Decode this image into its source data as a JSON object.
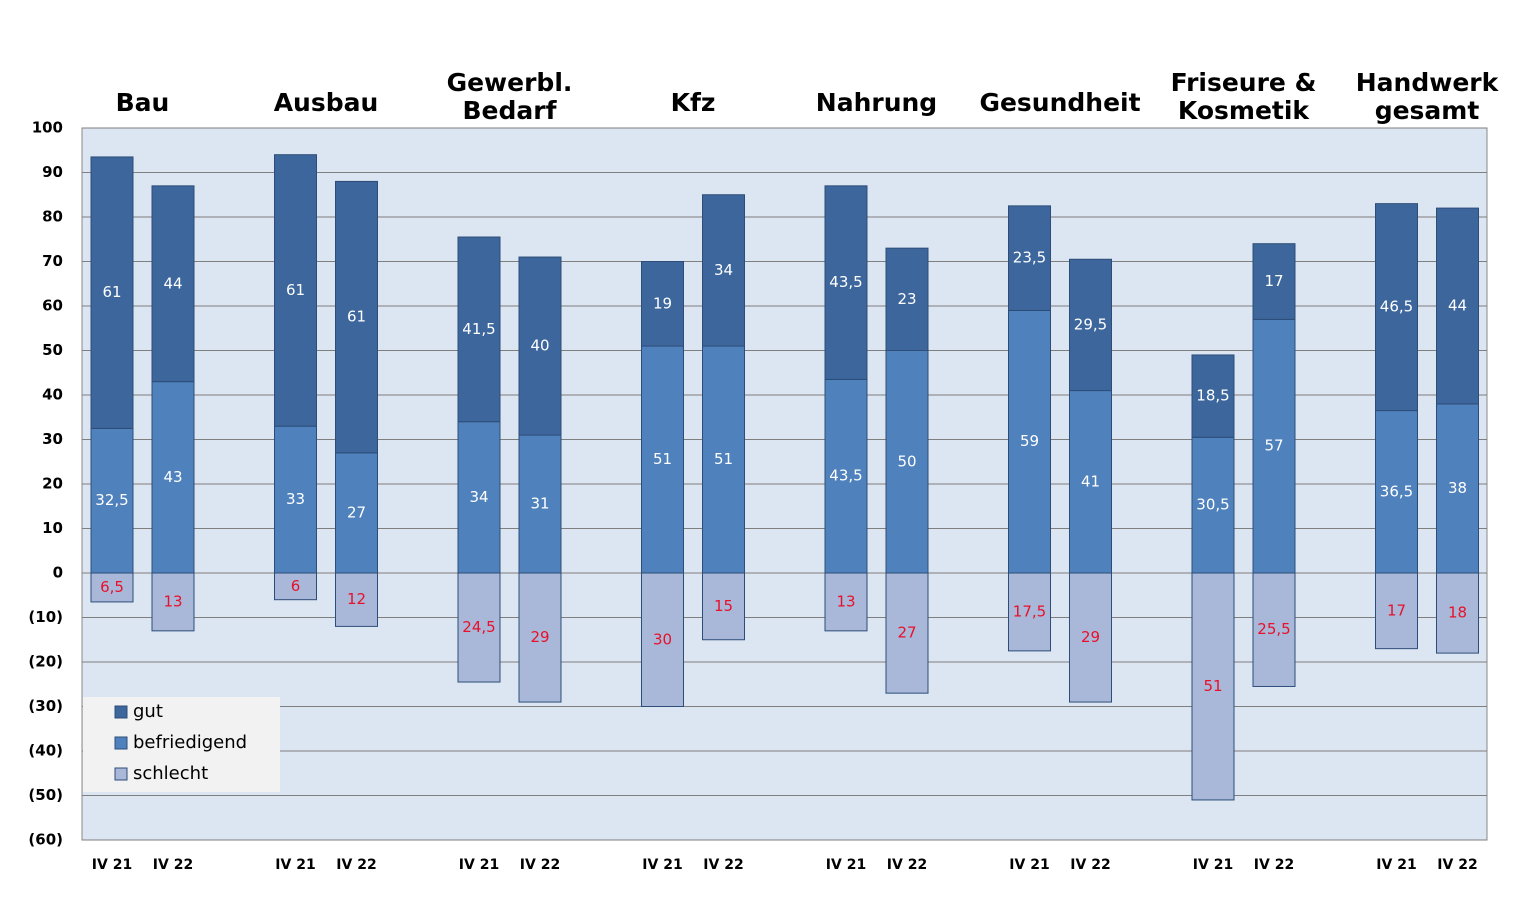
{
  "chart_data": {
    "type": "stacked-bar",
    "groups": [
      [
        "Bau"
      ],
      [
        "Ausbau"
      ],
      [
        "Gewerbl.",
        "Bedarf"
      ],
      [
        "Kfz"
      ],
      [
        "Nahrung"
      ],
      [
        "Gesundheit"
      ],
      [
        "Friseure &",
        "Kosmetik"
      ],
      [
        "Handwerk",
        "gesamt"
      ]
    ],
    "categories": [
      "IV 21",
      "IV 22",
      "IV 21",
      "IV 22",
      "IV 21",
      "IV 22",
      "IV 21",
      "IV 22",
      "IV 21",
      "IV 22",
      "IV 21",
      "IV 22",
      "IV 21",
      "IV 22",
      "IV 21",
      "IV 22"
    ],
    "series": [
      {
        "name": "befriedigend",
        "color": "#4f81bd",
        "label_color": "#ffffff",
        "values": [
          32.5,
          43,
          33,
          27,
          34,
          31,
          51,
          51,
          43.5,
          50,
          59,
          41,
          30.5,
          57,
          36.5,
          38
        ],
        "value_labels": [
          "32,5",
          "43",
          "33",
          "27",
          "34",
          "31",
          "51",
          "51",
          "43,5",
          "50",
          "59",
          "41",
          "30,5",
          "57",
          "36,5",
          "38"
        ]
      },
      {
        "name": "gut",
        "color": "#3d679c",
        "label_color": "#ffffff",
        "values": [
          61,
          44,
          61,
          61,
          41.5,
          40,
          19,
          34,
          43.5,
          23,
          23.5,
          29.5,
          18.5,
          17,
          46.5,
          44
        ],
        "value_labels": [
          "61",
          "44",
          "61",
          "61",
          "41,5",
          "40",
          "19",
          "34",
          "43,5",
          "23",
          "23,5",
          "29,5",
          "18,5",
          "17",
          "46,5",
          "44"
        ]
      },
      {
        "name": "schlecht",
        "color": "#a9b8d9",
        "label_color": "#e8102a",
        "values": [
          -6.5,
          -13,
          -6,
          -12,
          -24.5,
          -29,
          -30,
          -15,
          -13,
          -27,
          -17.5,
          -29,
          -51,
          -25.5,
          -17,
          -18
        ],
        "value_labels": [
          "6,5",
          "13",
          "6",
          "12",
          "24,5",
          "29",
          "30",
          "15",
          "13",
          "27",
          "17,5",
          "29",
          "51",
          "25,5",
          "17",
          "18"
        ]
      }
    ],
    "legend_order": [
      1,
      0,
      2
    ],
    "ylim": [
      -60,
      100
    ],
    "yticks": [
      100,
      90,
      80,
      70,
      60,
      50,
      40,
      30,
      20,
      10,
      0,
      {
        "value": -10,
        "label": "(10)"
      },
      {
        "value": -20,
        "label": "(20)"
      },
      {
        "value": -30,
        "label": "(30)"
      },
      {
        "value": -40,
        "label": "(40)"
      },
      {
        "value": -50,
        "label": "(50)"
      },
      {
        "value": -60,
        "label": "(60)"
      }
    ],
    "grid": true
  }
}
